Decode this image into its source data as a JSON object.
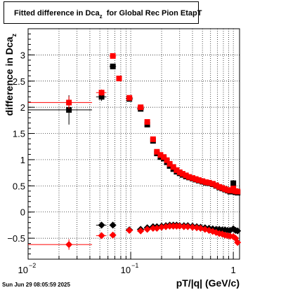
{
  "chart_data": {
    "type": "scatter",
    "title": "Fitted difference in Dca",
    "title_subscript": "z",
    "title_suffix": "for Global Rec Pion EtapT",
    "xlabel": "pT/|q| (GeV/c)",
    "ylabel": "difference in Dca",
    "ylabel_subscript": "z",
    "xscale": "log",
    "xlim": [
      0.01,
      1.15
    ],
    "ylim": [
      -0.9,
      3.5
    ],
    "grid": true,
    "legend": "none",
    "x_ticks": [
      {
        "value": 0.01,
        "base": "10",
        "exp": "−2"
      },
      {
        "value": 0.1,
        "base": "10",
        "exp": "−1"
      },
      {
        "value": 1,
        "base": "1",
        "exp": ""
      }
    ],
    "y_ticks": [
      {
        "value": -0.5,
        "label": "−0.5"
      },
      {
        "value": 0,
        "label": "0"
      },
      {
        "value": 0.5,
        "label": "0.5"
      },
      {
        "value": 1,
        "label": "1"
      },
      {
        "value": 1.5,
        "label": "1.5"
      },
      {
        "value": 2,
        "label": "2"
      },
      {
        "value": 2.5,
        "label": "2.5"
      },
      {
        "value": 3,
        "label": "3"
      }
    ],
    "series": [
      {
        "marker": "square",
        "color": "#000000",
        "points": [
          {
            "x": 0.025,
            "y": 1.95,
            "xlo": 0.01,
            "xhi": 0.042,
            "err": 0.28
          },
          {
            "x": 0.052,
            "y": 2.2,
            "xlo": 0.046,
            "xhi": 0.058,
            "err": 0.08
          },
          {
            "x": 0.067,
            "y": 2.78,
            "xlo": 0.062,
            "xhi": 0.072,
            "err": 0.05
          },
          {
            "x": 0.097,
            "y": 2.16,
            "xlo": 0.09,
            "xhi": 0.105,
            "err": 0.03
          },
          {
            "x": 0.125,
            "y": 1.97,
            "xlo": 0.115,
            "xhi": 0.135,
            "err": 0.03
          },
          {
            "x": 0.145,
            "y": 1.67,
            "err": 0.02
          },
          {
            "x": 0.165,
            "y": 1.36,
            "err": 0.02
          },
          {
            "x": 0.18,
            "y": 1.12,
            "err": 0.02
          },
          {
            "x": 0.195,
            "y": 1.05
          },
          {
            "x": 0.21,
            "y": 1.02
          },
          {
            "x": 0.225,
            "y": 0.95
          },
          {
            "x": 0.24,
            "y": 0.88
          },
          {
            "x": 0.26,
            "y": 0.82
          },
          {
            "x": 0.28,
            "y": 0.77
          },
          {
            "x": 0.3,
            "y": 0.74
          },
          {
            "x": 0.32,
            "y": 0.71
          },
          {
            "x": 0.345,
            "y": 0.68
          },
          {
            "x": 0.37,
            "y": 0.66
          },
          {
            "x": 0.4,
            "y": 0.64
          },
          {
            "x": 0.43,
            "y": 0.62
          },
          {
            "x": 0.46,
            "y": 0.6
          },
          {
            "x": 0.5,
            "y": 0.58
          },
          {
            "x": 0.54,
            "y": 0.56
          },
          {
            "x": 0.58,
            "y": 0.55
          },
          {
            "x": 0.63,
            "y": 0.53
          },
          {
            "x": 0.68,
            "y": 0.5
          },
          {
            "x": 0.73,
            "y": 0.47
          },
          {
            "x": 0.78,
            "y": 0.45
          },
          {
            "x": 0.83,
            "y": 0.43
          },
          {
            "x": 0.88,
            "y": 0.41
          },
          {
            "x": 0.93,
            "y": 0.39
          },
          {
            "x": 1.0,
            "y": 0.55,
            "err": 0.06
          },
          {
            "x": 1.05,
            "y": 0.38
          },
          {
            "x": 1.1,
            "y": 0.37
          }
        ]
      },
      {
        "marker": "square",
        "color": "#ff0000",
        "points": [
          {
            "x": 0.025,
            "y": 2.09,
            "xlo": 0.01,
            "xhi": 0.042,
            "err": 0.12
          },
          {
            "x": 0.052,
            "y": 2.28,
            "xlo": 0.046,
            "xhi": 0.058,
            "err": 0.06
          },
          {
            "x": 0.067,
            "y": 2.98,
            "xlo": 0.062,
            "xhi": 0.072,
            "err": 0.05
          },
          {
            "x": 0.077,
            "y": 2.55,
            "err": 0.04
          },
          {
            "x": 0.097,
            "y": 2.18,
            "xlo": 0.09,
            "xhi": 0.105,
            "err": 0.03
          },
          {
            "x": 0.125,
            "y": 2.0,
            "xlo": 0.115,
            "xhi": 0.135,
            "err": 0.03
          },
          {
            "x": 0.145,
            "y": 1.72,
            "err": 0.02
          },
          {
            "x": 0.165,
            "y": 1.39,
            "err": 0.02
          },
          {
            "x": 0.18,
            "y": 1.15,
            "err": 0.02
          },
          {
            "x": 0.195,
            "y": 1.09
          },
          {
            "x": 0.21,
            "y": 1.05
          },
          {
            "x": 0.225,
            "y": 0.99
          },
          {
            "x": 0.24,
            "y": 0.92
          },
          {
            "x": 0.26,
            "y": 0.86
          },
          {
            "x": 0.28,
            "y": 0.8
          },
          {
            "x": 0.3,
            "y": 0.76
          },
          {
            "x": 0.32,
            "y": 0.73
          },
          {
            "x": 0.345,
            "y": 0.7
          },
          {
            "x": 0.37,
            "y": 0.67
          },
          {
            "x": 0.4,
            "y": 0.65
          },
          {
            "x": 0.43,
            "y": 0.63
          },
          {
            "x": 0.46,
            "y": 0.61
          },
          {
            "x": 0.5,
            "y": 0.59
          },
          {
            "x": 0.54,
            "y": 0.57
          },
          {
            "x": 0.58,
            "y": 0.56
          },
          {
            "x": 0.63,
            "y": 0.54
          },
          {
            "x": 0.68,
            "y": 0.51
          },
          {
            "x": 0.73,
            "y": 0.48
          },
          {
            "x": 0.78,
            "y": 0.46
          },
          {
            "x": 0.83,
            "y": 0.44
          },
          {
            "x": 0.88,
            "y": 0.42
          },
          {
            "x": 0.93,
            "y": 0.41
          },
          {
            "x": 1.0,
            "y": 0.45,
            "err": 0.05
          },
          {
            "x": 1.05,
            "y": 0.4
          },
          {
            "x": 1.1,
            "y": 0.39
          }
        ]
      },
      {
        "marker": "diamond",
        "color": "#000000",
        "points": [
          {
            "x": 0.052,
            "y": -0.25,
            "xlo": 0.046,
            "xhi": 0.058,
            "err": 0.04
          },
          {
            "x": 0.067,
            "y": -0.25,
            "xlo": 0.062,
            "xhi": 0.072
          },
          {
            "x": 0.097,
            "y": -0.34,
            "xlo": 0.09,
            "xhi": 0.105
          },
          {
            "x": 0.125,
            "y": -0.33,
            "xlo": 0.115,
            "xhi": 0.135
          },
          {
            "x": 0.145,
            "y": -0.3
          },
          {
            "x": 0.165,
            "y": -0.28
          },
          {
            "x": 0.18,
            "y": -0.28
          },
          {
            "x": 0.2,
            "y": -0.27
          },
          {
            "x": 0.22,
            "y": -0.26
          },
          {
            "x": 0.24,
            "y": -0.25
          },
          {
            "x": 0.26,
            "y": -0.25
          },
          {
            "x": 0.28,
            "y": -0.25
          },
          {
            "x": 0.3,
            "y": -0.26
          },
          {
            "x": 0.33,
            "y": -0.26
          },
          {
            "x": 0.36,
            "y": -0.26
          },
          {
            "x": 0.4,
            "y": -0.27
          },
          {
            "x": 0.44,
            "y": -0.28
          },
          {
            "x": 0.48,
            "y": -0.29
          },
          {
            "x": 0.53,
            "y": -0.3
          },
          {
            "x": 0.58,
            "y": -0.31
          },
          {
            "x": 0.63,
            "y": -0.32
          },
          {
            "x": 0.68,
            "y": -0.33
          },
          {
            "x": 0.73,
            "y": -0.33
          },
          {
            "x": 0.78,
            "y": -0.34
          },
          {
            "x": 0.83,
            "y": -0.34
          },
          {
            "x": 0.88,
            "y": -0.35
          },
          {
            "x": 0.93,
            "y": -0.35
          },
          {
            "x": 1.0,
            "y": -0.32,
            "err": 0.04
          },
          {
            "x": 1.05,
            "y": -0.35
          },
          {
            "x": 1.1,
            "y": -0.36
          }
        ]
      },
      {
        "marker": "diamond",
        "color": "#ff0000",
        "points": [
          {
            "x": 0.025,
            "y": -0.62,
            "xlo": 0.01,
            "xhi": 0.042,
            "err": 0.1
          },
          {
            "x": 0.052,
            "y": -0.45,
            "xlo": 0.046,
            "xhi": 0.058,
            "err": 0.04
          },
          {
            "x": 0.067,
            "y": -0.44,
            "xlo": 0.062,
            "xhi": 0.072
          },
          {
            "x": 0.097,
            "y": -0.35,
            "xlo": 0.09,
            "xhi": 0.105
          },
          {
            "x": 0.125,
            "y": -0.36,
            "xlo": 0.115,
            "xhi": 0.135
          },
          {
            "x": 0.145,
            "y": -0.33
          },
          {
            "x": 0.165,
            "y": -0.31
          },
          {
            "x": 0.18,
            "y": -0.31
          },
          {
            "x": 0.2,
            "y": -0.29
          },
          {
            "x": 0.22,
            "y": -0.28
          },
          {
            "x": 0.24,
            "y": -0.27
          },
          {
            "x": 0.26,
            "y": -0.27
          },
          {
            "x": 0.28,
            "y": -0.27
          },
          {
            "x": 0.3,
            "y": -0.27
          },
          {
            "x": 0.33,
            "y": -0.28
          },
          {
            "x": 0.36,
            "y": -0.28
          },
          {
            "x": 0.4,
            "y": -0.29
          },
          {
            "x": 0.44,
            "y": -0.3
          },
          {
            "x": 0.48,
            "y": -0.31
          },
          {
            "x": 0.53,
            "y": -0.33
          },
          {
            "x": 0.58,
            "y": -0.35
          },
          {
            "x": 0.63,
            "y": -0.37
          },
          {
            "x": 0.68,
            "y": -0.39
          },
          {
            "x": 0.73,
            "y": -0.41
          },
          {
            "x": 0.78,
            "y": -0.42
          },
          {
            "x": 0.83,
            "y": -0.44
          },
          {
            "x": 0.88,
            "y": -0.45
          },
          {
            "x": 0.93,
            "y": -0.46
          },
          {
            "x": 1.0,
            "y": -0.47,
            "err": 0.04
          },
          {
            "x": 1.05,
            "y": -0.5
          },
          {
            "x": 1.1,
            "y": -0.58
          }
        ]
      }
    ]
  },
  "footer": {
    "datestamp": "Sun Jun 29 08:05:59 2025"
  }
}
